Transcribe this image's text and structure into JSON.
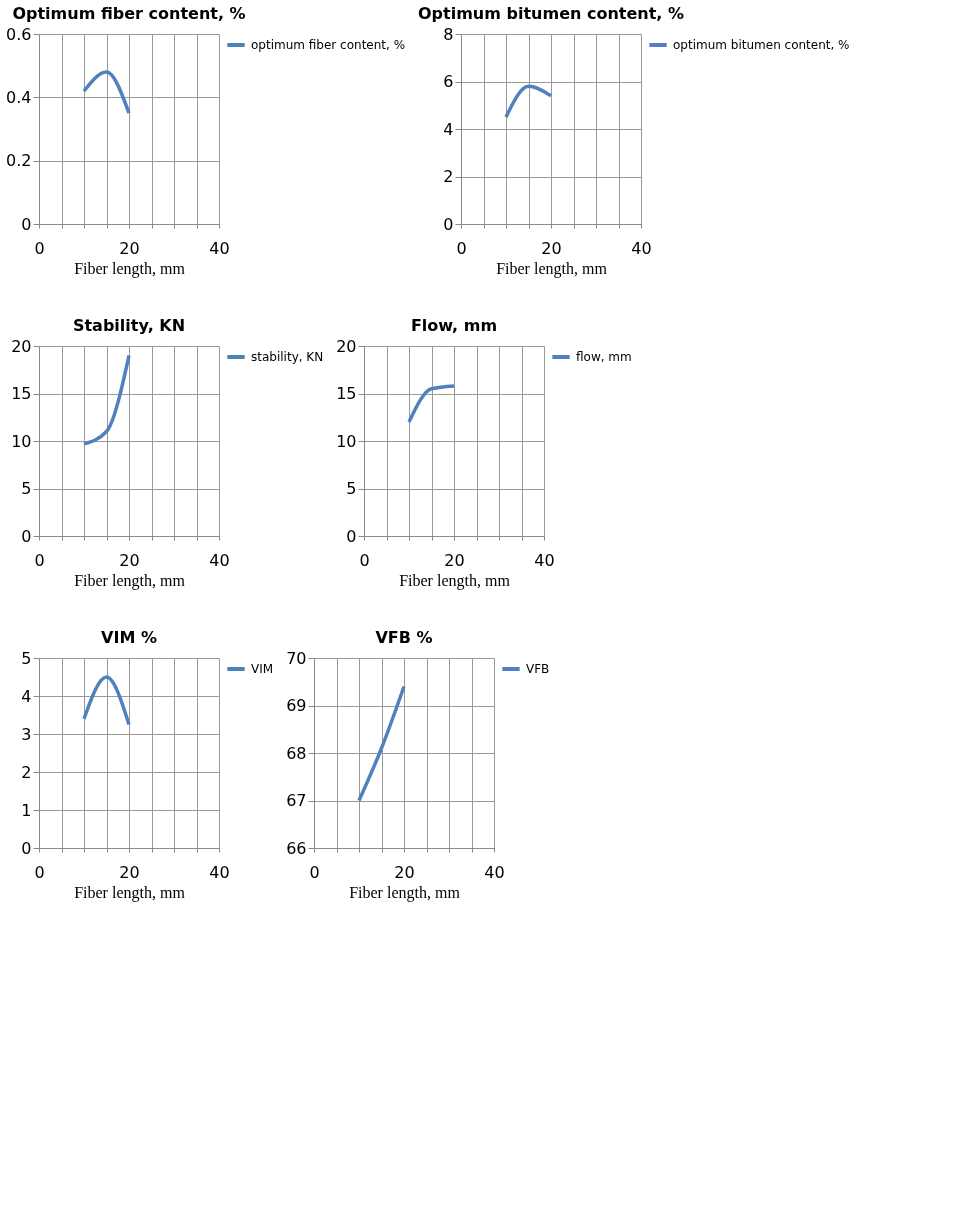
{
  "chart_data": [
    {
      "type": "line",
      "title": "Optimum fiber content, %",
      "xlabel": "Fiber length, mm",
      "x": [
        10,
        15,
        20
      ],
      "series": [
        {
          "name": "optimum fiber content, %",
          "color": "#4f81bd",
          "values": [
            0.42,
            0.48,
            0.35
          ]
        }
      ],
      "xlim": [
        0,
        40
      ],
      "xticks": [
        0,
        {
          "value": 5,
          "label": null
        },
        {
          "value": 10,
          "label": null
        },
        {
          "value": 15,
          "label": null
        },
        20,
        {
          "value": 25,
          "label": null
        },
        {
          "value": 30,
          "label": null
        },
        {
          "value": 35,
          "label": null
        },
        40
      ],
      "ylim": [
        0,
        0.6
      ],
      "yticks": [
        0,
        0.2,
        0.4,
        0.6
      ],
      "grid": true,
      "legend": "right",
      "line_style": "solid"
    },
    {
      "type": "line",
      "title": "Optimum bitumen content, %",
      "xlabel": "Fiber length, mm",
      "x": [
        10,
        15,
        20
      ],
      "series": [
        {
          "name": "optimum bitumen content, %",
          "color": "#4f81bd",
          "values": [
            4.5,
            5.8,
            5.4
          ]
        }
      ],
      "xlim": [
        0,
        40
      ],
      "xticks": [
        0,
        {
          "value": 5,
          "label": null
        },
        {
          "value": 10,
          "label": null
        },
        {
          "value": 15,
          "label": null
        },
        20,
        {
          "value": 25,
          "label": null
        },
        {
          "value": 30,
          "label": null
        },
        {
          "value": 35,
          "label": null
        },
        40
      ],
      "ylim": [
        0,
        8
      ],
      "yticks": [
        0,
        2,
        4,
        6,
        8
      ],
      "grid": true,
      "legend": "right",
      "line_style": "solid"
    },
    {
      "type": "line",
      "title": "Stability, KN",
      "xlabel": "Fiber length, mm",
      "x": [
        10,
        15,
        20
      ],
      "series": [
        {
          "name": "stability, KN",
          "color": "#4f81bd",
          "values": [
            9.7,
            11,
            19
          ]
        }
      ],
      "xlim": [
        0,
        40
      ],
      "xticks": [
        0,
        {
          "value": 5,
          "label": null
        },
        {
          "value": 10,
          "label": null
        },
        {
          "value": 15,
          "label": null
        },
        20,
        {
          "value": 25,
          "label": null
        },
        {
          "value": 30,
          "label": null
        },
        {
          "value": 35,
          "label": null
        },
        40
      ],
      "ylim": [
        0,
        20
      ],
      "yticks": [
        0,
        5,
        10,
        15,
        20
      ],
      "grid": true,
      "legend": "right",
      "line_style": "solid"
    },
    {
      "type": "line",
      "title": "Flow, mm",
      "xlabel": "Fiber length, mm",
      "x": [
        10,
        15,
        20
      ],
      "series": [
        {
          "name": "flow, mm",
          "color": "#4f81bd",
          "values": [
            12,
            15.5,
            15.8
          ]
        }
      ],
      "xlim": [
        0,
        40
      ],
      "xticks": [
        0,
        {
          "value": 5,
          "label": null
        },
        {
          "value": 10,
          "label": null
        },
        {
          "value": 15,
          "label": null
        },
        20,
        {
          "value": 25,
          "label": null
        },
        {
          "value": 30,
          "label": null
        },
        {
          "value": 35,
          "label": null
        },
        40
      ],
      "ylim": [
        0,
        20
      ],
      "yticks": [
        0,
        5,
        10,
        15,
        20
      ],
      "grid": true,
      "legend": "right",
      "line_style": "solid"
    },
    {
      "type": "line",
      "title": "VIM %",
      "xlabel": "Fiber length, mm",
      "x": [
        10,
        15,
        20
      ],
      "series": [
        {
          "name": "VIM",
          "color": "#4f81bd",
          "values": [
            3.4,
            4.5,
            3.25
          ]
        }
      ],
      "xlim": [
        0,
        40
      ],
      "xticks": [
        0,
        {
          "value": 5,
          "label": null
        },
        {
          "value": 10,
          "label": null
        },
        {
          "value": 15,
          "label": null
        },
        20,
        {
          "value": 25,
          "label": null
        },
        {
          "value": 30,
          "label": null
        },
        {
          "value": 35,
          "label": null
        },
        40
      ],
      "ylim": [
        0,
        5
      ],
      "yticks": [
        0,
        1,
        2,
        3,
        4,
        5
      ],
      "grid": true,
      "legend": "right",
      "line_style": "solid"
    },
    {
      "type": "line",
      "title": "VFB %",
      "xlabel": "Fiber length, mm",
      "x": [
        10,
        15,
        20
      ],
      "series": [
        {
          "name": "VFB",
          "color": "#4f81bd",
          "values": [
            67,
            68.1,
            69.4
          ]
        }
      ],
      "xlim": [
        0,
        40
      ],
      "xticks": [
        0,
        {
          "value": 5,
          "label": null
        },
        {
          "value": 10,
          "label": null
        },
        {
          "value": 15,
          "label": null
        },
        20,
        {
          "value": 25,
          "label": null
        },
        {
          "value": 30,
          "label": null
        },
        {
          "value": 35,
          "label": null
        },
        40
      ],
      "ylim": [
        66,
        70
      ],
      "yticks": [
        66,
        67,
        68,
        69,
        70
      ],
      "grid": true,
      "legend": "right",
      "line_style": "solid"
    }
  ]
}
